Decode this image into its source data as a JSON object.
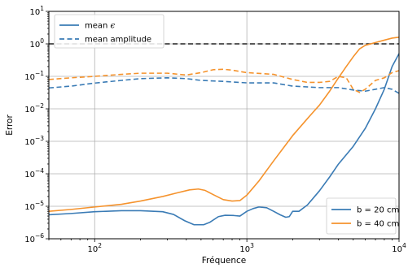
{
  "chart_data": {
    "type": "line",
    "title": "",
    "xlabel": "Fréquence",
    "ylabel": "Error",
    "x_scale": "log",
    "y_scale": "log",
    "xlim": [
      50,
      10000
    ],
    "ylim": [
      1e-06,
      10
    ],
    "grid": true,
    "x_ticks": [
      {
        "value": 100,
        "base": "10",
        "exp": "2"
      },
      {
        "value": 1000,
        "base": "10",
        "exp": "3"
      },
      {
        "value": 10000,
        "base": "10",
        "exp": "4"
      }
    ],
    "y_ticks": [
      {
        "value": 1e-06,
        "base": "10",
        "exp": "−6"
      },
      {
        "value": 1e-05,
        "base": "10",
        "exp": "−5"
      },
      {
        "value": 0.0001,
        "base": "10",
        "exp": "−4"
      },
      {
        "value": 0.001,
        "base": "10",
        "exp": "−3"
      },
      {
        "value": 0.01,
        "base": "10",
        "exp": "−2"
      },
      {
        "value": 0.1,
        "base": "10",
        "exp": "−1"
      },
      {
        "value": 1,
        "base": "10",
        "exp": "0"
      },
      {
        "value": 10,
        "base": "10",
        "exp": "1"
      }
    ],
    "reference_line": {
      "y": 1,
      "color": "#222222",
      "style": "dashed"
    },
    "colors": {
      "b20": "#3a7bb5",
      "b40": "#f5932d"
    },
    "series": [
      {
        "name": "b = 20 cm",
        "color": "#3a7bb5",
        "style": "solid",
        "points": [
          [
            50,
            5.5e-06
          ],
          [
            70,
            6e-06
          ],
          [
            100,
            6.8e-06
          ],
          [
            150,
            7.3e-06
          ],
          [
            200,
            7.3e-06
          ],
          [
            280,
            6.8e-06
          ],
          [
            330,
            5.6e-06
          ],
          [
            390,
            3.6e-06
          ],
          [
            450,
            2.7e-06
          ],
          [
            520,
            2.7e-06
          ],
          [
            570,
            3.2e-06
          ],
          [
            650,
            4.8e-06
          ],
          [
            720,
            5.3e-06
          ],
          [
            820,
            5.2e-06
          ],
          [
            900,
            5e-06
          ],
          [
            1000,
            7e-06
          ],
          [
            1100,
            8.5e-06
          ],
          [
            1200,
            9.5e-06
          ],
          [
            1350,
            9e-06
          ],
          [
            1500,
            7e-06
          ],
          [
            1650,
            5.5e-06
          ],
          [
            1800,
            4.6e-06
          ],
          [
            1900,
            4.8e-06
          ],
          [
            2000,
            7e-06
          ],
          [
            2200,
            7e-06
          ],
          [
            2500,
            1.1e-05
          ],
          [
            3000,
            3e-05
          ],
          [
            3500,
            8e-05
          ],
          [
            4000,
            0.0002
          ],
          [
            5000,
            0.0007
          ],
          [
            6000,
            0.0025
          ],
          [
            7000,
            0.01
          ],
          [
            8000,
            0.04
          ],
          [
            9000,
            0.2
          ],
          [
            10000,
            0.5
          ]
        ]
      },
      {
        "name": "b = 40 cm",
        "color": "#f5932d",
        "style": "solid",
        "points": [
          [
            50,
            7e-06
          ],
          [
            70,
            8e-06
          ],
          [
            100,
            9.5e-06
          ],
          [
            150,
            1.15e-05
          ],
          [
            200,
            1.45e-05
          ],
          [
            280,
            2e-05
          ],
          [
            350,
            2.6e-05
          ],
          [
            420,
            3.2e-05
          ],
          [
            480,
            3.4e-05
          ],
          [
            530,
            3.1e-05
          ],
          [
            600,
            2.3e-05
          ],
          [
            700,
            1.6e-05
          ],
          [
            800,
            1.45e-05
          ],
          [
            900,
            1.5e-05
          ],
          [
            1000,
            2.2e-05
          ],
          [
            1200,
            6e-05
          ],
          [
            1500,
            0.00025
          ],
          [
            2000,
            0.0015
          ],
          [
            2500,
            0.005
          ],
          [
            3000,
            0.013
          ],
          [
            3500,
            0.035
          ],
          [
            4000,
            0.09
          ],
          [
            4500,
            0.2
          ],
          [
            5000,
            0.4
          ],
          [
            5500,
            0.7
          ],
          [
            6000,
            0.9
          ],
          [
            7000,
            1.1
          ],
          [
            8000,
            1.3
          ],
          [
            9000,
            1.5
          ],
          [
            10000,
            1.6
          ]
        ]
      },
      {
        "name": "b = 20 cm amplitude",
        "color": "#3a7bb5",
        "style": "dashed",
        "points": [
          [
            50,
            0.044
          ],
          [
            70,
            0.05
          ],
          [
            100,
            0.062
          ],
          [
            150,
            0.075
          ],
          [
            200,
            0.085
          ],
          [
            300,
            0.09
          ],
          [
            400,
            0.085
          ],
          [
            500,
            0.075
          ],
          [
            700,
            0.07
          ],
          [
            1000,
            0.063
          ],
          [
            1500,
            0.063
          ],
          [
            2000,
            0.05
          ],
          [
            3000,
            0.045
          ],
          [
            4000,
            0.045
          ],
          [
            5000,
            0.038
          ],
          [
            6000,
            0.035
          ],
          [
            7000,
            0.04
          ],
          [
            8000,
            0.045
          ],
          [
            9000,
            0.04
          ],
          [
            10000,
            0.03
          ]
        ]
      },
      {
        "name": "b = 40 cm amplitude",
        "color": "#f5932d",
        "style": "dashed",
        "points": [
          [
            50,
            0.08
          ],
          [
            70,
            0.09
          ],
          [
            100,
            0.1
          ],
          [
            150,
            0.115
          ],
          [
            200,
            0.125
          ],
          [
            300,
            0.125
          ],
          [
            400,
            0.11
          ],
          [
            500,
            0.13
          ],
          [
            600,
            0.16
          ],
          [
            700,
            0.165
          ],
          [
            800,
            0.155
          ],
          [
            1000,
            0.13
          ],
          [
            1500,
            0.115
          ],
          [
            2000,
            0.08
          ],
          [
            2500,
            0.065
          ],
          [
            3000,
            0.065
          ],
          [
            3500,
            0.07
          ],
          [
            4000,
            0.1
          ],
          [
            4500,
            0.09
          ],
          [
            5000,
            0.04
          ],
          [
            5500,
            0.032
          ],
          [
            6000,
            0.04
          ],
          [
            7000,
            0.075
          ],
          [
            8000,
            0.09
          ],
          [
            9000,
            0.13
          ],
          [
            10000,
            0.15
          ]
        ]
      }
    ],
    "legend_style": {
      "location": "top-left",
      "entries": [
        {
          "label_prefix": "mean ",
          "label_symbol": "ϵ",
          "color": "#3a7bb5",
          "style": "solid"
        },
        {
          "label": "mean amplitude",
          "color": "#3a7bb5",
          "style": "dashed"
        }
      ]
    },
    "legend_series": {
      "location": "bottom-right",
      "entries": [
        {
          "label": "b = 20 cm",
          "color": "#3a7bb5",
          "style": "solid"
        },
        {
          "label": "b = 40 cm",
          "color": "#f5932d",
          "style": "solid"
        }
      ]
    }
  }
}
